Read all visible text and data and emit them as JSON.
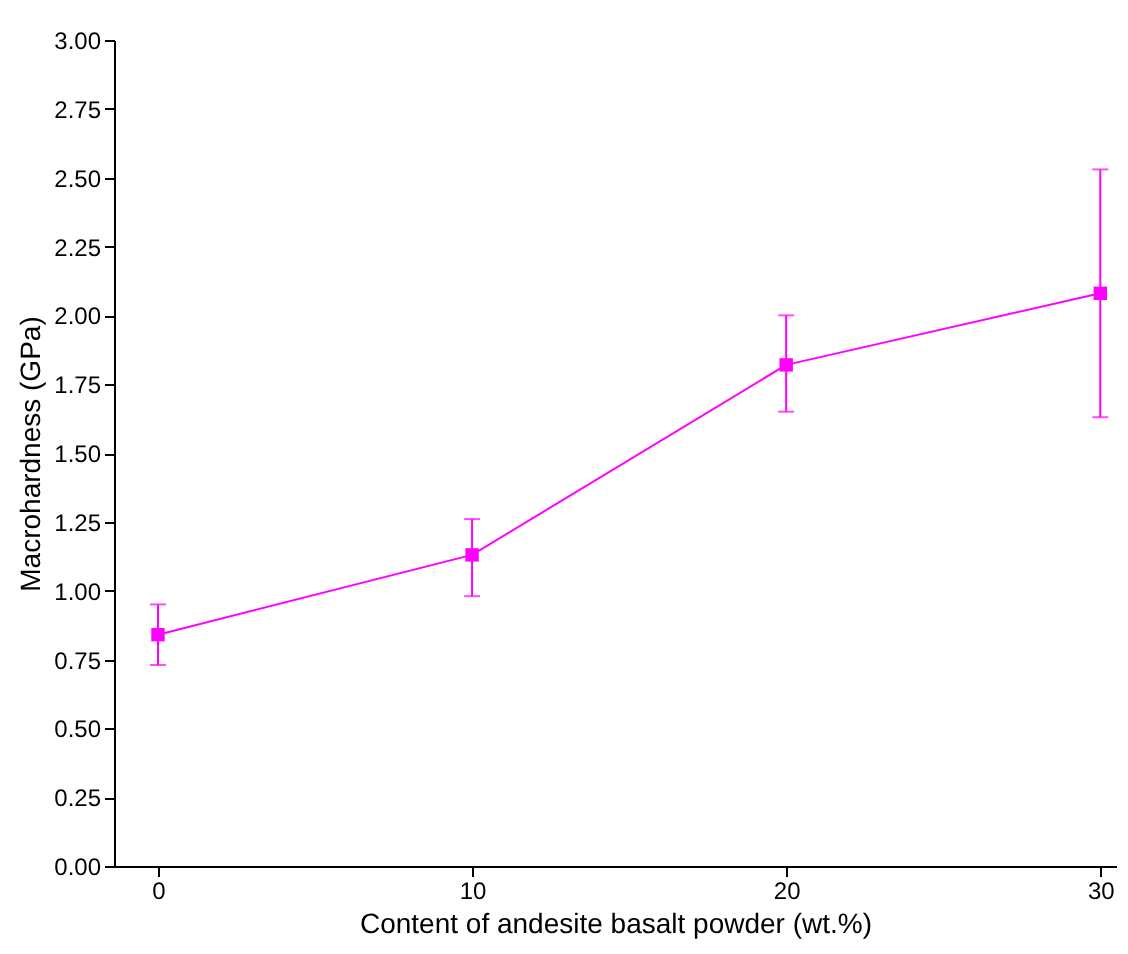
{
  "chart_data": {
    "type": "line",
    "xlabel": "Content of andesite basalt powder (wt.%)",
    "ylabel": "Macrohardness (GPa)",
    "x": [
      0,
      10,
      20,
      30
    ],
    "series": [
      {
        "color": "#ff00ff",
        "values": [
          0.84,
          1.13,
          1.82,
          2.08
        ],
        "errors": [
          [
            0.73,
            0.95
          ],
          [
            0.98,
            1.26
          ],
          [
            1.65,
            2.0
          ],
          [
            1.63,
            2.53
          ]
        ]
      }
    ],
    "xlim": [
      -1.4,
      30.5
    ],
    "xticks": [
      0,
      10,
      20,
      30
    ],
    "ylim": [
      0,
      3
    ],
    "yticks": [
      {
        "value": 0,
        "label": "0.00"
      },
      0.25,
      {
        "value": 0.5,
        "label": "0.50"
      },
      0.75,
      {
        "value": 1,
        "label": "1.00"
      },
      1.25,
      {
        "value": 1.5,
        "label": "1.50"
      },
      1.75,
      {
        "value": 2,
        "label": "2.00"
      },
      2.25,
      {
        "value": 2.5,
        "label": "2.50"
      },
      2.75,
      {
        "value": 3,
        "label": "3.00"
      }
    ],
    "marker": "square",
    "line_style": "solid",
    "grid": false
  }
}
